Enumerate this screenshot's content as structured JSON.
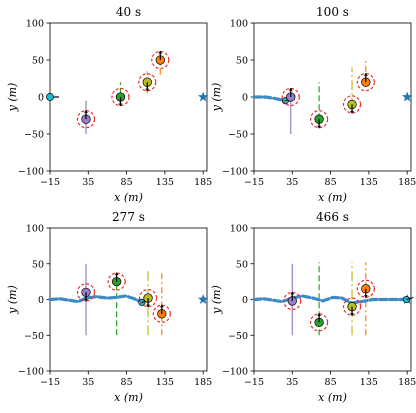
{
  "chart_data": [
    {
      "type": "scatter",
      "title": "40 s",
      "xlabel": "x (m)",
      "ylabel": "y (m)",
      "xlim": [
        -15,
        190
      ],
      "ylim": [
        -100,
        100
      ],
      "xticks": [
        -15,
        35,
        85,
        135,
        185
      ],
      "yticks": [
        -100,
        -50,
        0,
        50,
        100
      ],
      "start": {
        "x": -15,
        "y": 0,
        "heading": "left"
      },
      "goal": {
        "x": 185,
        "y": 0
      },
      "path": [],
      "agents": [
        {
          "x": 32,
          "y": -30,
          "color": "#9b7ec8",
          "dir": "up",
          "lane": [
            -50,
            -5
          ]
        },
        {
          "x": 77,
          "y": 0,
          "color": "#2ca02c",
          "dir": "down",
          "lane": [
            -8,
            20
          ]
        },
        {
          "x": 112,
          "y": 20,
          "color": "#bcbd22",
          "dir": "down",
          "lane": [
            5,
            35
          ]
        },
        {
          "x": 129,
          "y": 50,
          "color": "#ff7f0e",
          "dir": "up",
          "lane": [
            30,
            55
          ]
        }
      ]
    },
    {
      "type": "scatter",
      "title": "100 s",
      "xlabel": "x (m)",
      "ylabel": "y (m)",
      "xlim": [
        -15,
        190
      ],
      "ylim": [
        -100,
        100
      ],
      "xticks": [
        -15,
        35,
        85,
        135,
        185
      ],
      "yticks": [
        -100,
        -50,
        0,
        50,
        100
      ],
      "start": null,
      "goal": {
        "x": 185,
        "y": 0
      },
      "path": [
        [
          -15,
          0
        ],
        [
          0,
          0
        ],
        [
          12,
          -2
        ],
        [
          22,
          -4
        ],
        [
          26,
          -5
        ]
      ],
      "agents": [
        {
          "x": 33,
          "y": 0,
          "color": "#9b7ec8",
          "dir": "up",
          "lane": [
            -50,
            10
          ]
        },
        {
          "x": 70,
          "y": -30,
          "color": "#2ca02c",
          "dir": "down",
          "lane": [
            -30,
            20
          ]
        },
        {
          "x": 113,
          "y": -10,
          "color": "#bcbd22",
          "dir": "down",
          "lane": [
            -15,
            40
          ]
        },
        {
          "x": 131,
          "y": 20,
          "color": "#ff7f0e",
          "dir": "up",
          "lane": [
            15,
            52
          ]
        }
      ]
    },
    {
      "type": "scatter",
      "title": "277 s",
      "xlabel": "x (m)",
      "ylabel": "y (m)",
      "xlim": [
        -15,
        190
      ],
      "ylim": [
        -100,
        100
      ],
      "xticks": [
        -15,
        35,
        85,
        135,
        185
      ],
      "yticks": [
        -100,
        -50,
        0,
        50,
        100
      ],
      "start": null,
      "goal": {
        "x": 185,
        "y": 0
      },
      "path": [
        [
          -15,
          0
        ],
        [
          -2,
          1
        ],
        [
          10,
          -1
        ],
        [
          22,
          -3
        ],
        [
          32,
          2
        ],
        [
          45,
          4
        ],
        [
          60,
          2
        ],
        [
          72,
          3
        ],
        [
          84,
          5
        ],
        [
          95,
          1
        ],
        [
          105,
          -4
        ]
      ],
      "agents": [
        {
          "x": 32,
          "y": 10,
          "color": "#9b7ec8",
          "dir": "down",
          "lane": [
            -50,
            50
          ]
        },
        {
          "x": 72,
          "y": 25,
          "color": "#2ca02c",
          "dir": "up",
          "lane": [
            -50,
            30
          ]
        },
        {
          "x": 113,
          "y": 2,
          "color": "#bcbd22",
          "dir": "down",
          "lane": [
            -50,
            40
          ]
        },
        {
          "x": 131,
          "y": -20,
          "color": "#ff7f0e",
          "dir": "up",
          "lane": [
            -50,
            40
          ]
        }
      ]
    },
    {
      "type": "scatter",
      "title": "466 s",
      "xlabel": "x (m)",
      "ylabel": "y (m)",
      "xlim": [
        -15,
        190
      ],
      "ylim": [
        -100,
        100
      ],
      "xticks": [
        -15,
        35,
        85,
        135,
        185
      ],
      "yticks": [
        -100,
        -50,
        0,
        50,
        100
      ],
      "start": null,
      "goal": {
        "x": 185,
        "y": 0
      },
      "path": [
        [
          -15,
          0
        ],
        [
          -2,
          1
        ],
        [
          10,
          -1
        ],
        [
          22,
          -3
        ],
        [
          35,
          2
        ],
        [
          48,
          5
        ],
        [
          62,
          2
        ],
        [
          75,
          -2
        ],
        [
          88,
          3
        ],
        [
          100,
          2
        ],
        [
          112,
          -5
        ],
        [
          125,
          -3
        ],
        [
          140,
          0
        ],
        [
          155,
          0
        ],
        [
          170,
          0
        ],
        [
          184,
          0
        ]
      ],
      "agents": [
        {
          "x": 35,
          "y": -2,
          "color": "#9b7ec8",
          "dir": "up",
          "lane": [
            -50,
            50
          ]
        },
        {
          "x": 70,
          "y": -32,
          "color": "#2ca02c",
          "dir": "up",
          "lane": [
            -50,
            52
          ]
        },
        {
          "x": 113,
          "y": -10,
          "color": "#bcbd22",
          "dir": "down",
          "lane": [
            -50,
            52
          ]
        },
        {
          "x": 131,
          "y": 15,
          "color": "#ff7f0e",
          "dir": "down",
          "lane": [
            -50,
            52
          ]
        }
      ]
    }
  ]
}
